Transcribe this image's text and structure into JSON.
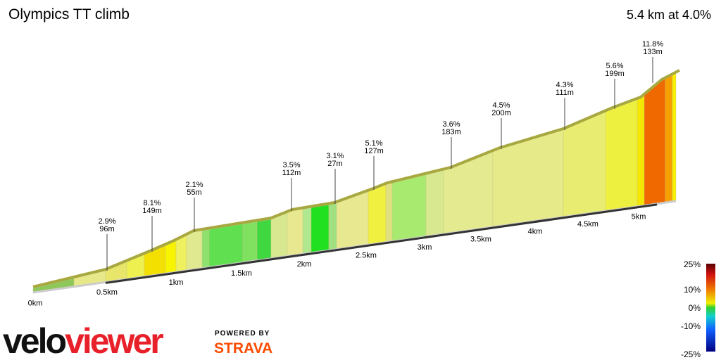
{
  "header": {
    "title": "Olympics TT climb",
    "summary": "5.4 km at 4.0%"
  },
  "annotations": [
    {
      "grade": "2.9%",
      "length": "96m"
    },
    {
      "grade": "8.1%",
      "length": "149m"
    },
    {
      "grade": "2.1%",
      "length": "55m"
    },
    {
      "grade": "3.5%",
      "length": "112m"
    },
    {
      "grade": "3.1%",
      "length": "27m"
    },
    {
      "grade": "5.1%",
      "length": "127m"
    },
    {
      "grade": "3.6%",
      "length": "183m"
    },
    {
      "grade": "4.5%",
      "length": "200m"
    },
    {
      "grade": "4.3%",
      "length": "111m"
    },
    {
      "grade": "5.6%",
      "length": "199m"
    },
    {
      "grade": "11.8%",
      "length": "133m"
    }
  ],
  "distance_labels": [
    "0km",
    "0.5km",
    "1km",
    "1.5km",
    "2km",
    "2.5km",
    "3km",
    "3.5km",
    "4km",
    "4.5km",
    "5km"
  ],
  "legend": {
    "labels": [
      "25%",
      "10%",
      "0%",
      "-10%",
      "-25%"
    ]
  },
  "brand": {
    "logo": [
      "velo",
      "viewer"
    ],
    "powered": "POWERED BY",
    "partner": "STRAVA"
  }
}
